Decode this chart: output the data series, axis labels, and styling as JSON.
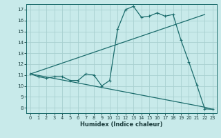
{
  "xlabel": "Humidex (Indice chaleur)",
  "bg_color": "#c8eaea",
  "grid_color": "#a8d0d0",
  "line_color": "#1a6b6b",
  "xlim": [
    -0.5,
    23.5
  ],
  "ylim": [
    7.5,
    17.5
  ],
  "xticks": [
    0,
    1,
    2,
    3,
    4,
    5,
    6,
    7,
    8,
    9,
    10,
    11,
    12,
    13,
    14,
    15,
    16,
    17,
    18,
    19,
    20,
    21,
    22,
    23
  ],
  "yticks": [
    8,
    9,
    10,
    11,
    12,
    13,
    14,
    15,
    16,
    17
  ],
  "line1_x": [
    0,
    1,
    2,
    3,
    4,
    5,
    6,
    7,
    8,
    9,
    10,
    11,
    12,
    13,
    14,
    15,
    16,
    17,
    18,
    19,
    20,
    21,
    22,
    23
  ],
  "line1_y": [
    11.1,
    10.85,
    10.7,
    10.85,
    10.85,
    10.5,
    10.5,
    11.1,
    11.0,
    10.0,
    10.5,
    15.2,
    17.0,
    17.3,
    16.3,
    16.4,
    16.7,
    16.4,
    16.55,
    14.2,
    12.2,
    10.1,
    7.9,
    7.85
  ],
  "line2_x": [
    0,
    22
  ],
  "line2_y": [
    11.1,
    16.55
  ],
  "line3_x": [
    0,
    22,
    23
  ],
  "line3_y": [
    11.1,
    8.05,
    7.85
  ]
}
